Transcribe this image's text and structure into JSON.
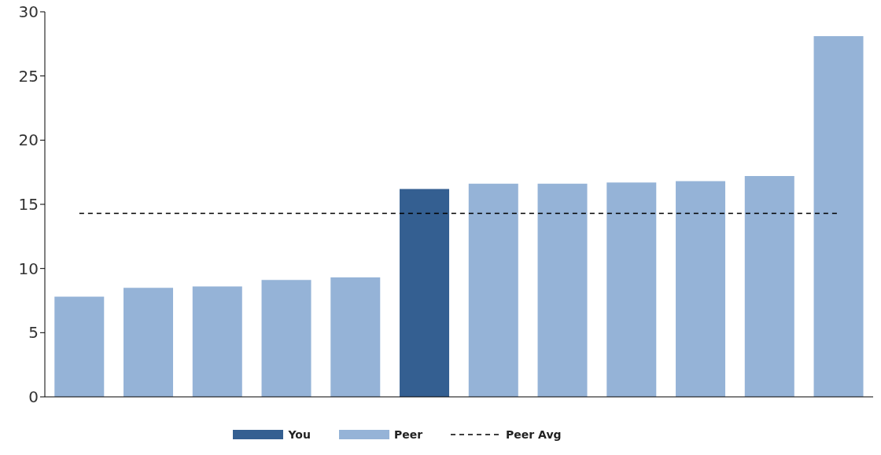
{
  "chart_data": {
    "type": "bar",
    "categories": [
      null,
      null,
      null,
      null,
      null,
      null,
      null,
      null,
      null,
      null,
      null,
      null
    ],
    "series": [
      {
        "name": "You",
        "color": "#345f91",
        "values": [
          null,
          null,
          null,
          null,
          null,
          16.2,
          null,
          null,
          null,
          null,
          null,
          null
        ]
      },
      {
        "name": "Peer",
        "color": "#95b3d7",
        "values": [
          7.8,
          8.5,
          8.6,
          9.1,
          9.3,
          null,
          16.6,
          16.6,
          16.7,
          16.8,
          17.2,
          28.1
        ]
      }
    ],
    "stacked": true,
    "ylim": [
      0,
      30
    ],
    "yticks": [
      0,
      5,
      10,
      15,
      20,
      25,
      30
    ],
    "grid": false,
    "legend": "bottom",
    "ref_lines": [
      {
        "axis": "y",
        "value": 14.3,
        "label": "Peer Avg",
        "color": "#000000",
        "line_style": "dashed"
      }
    ]
  }
}
